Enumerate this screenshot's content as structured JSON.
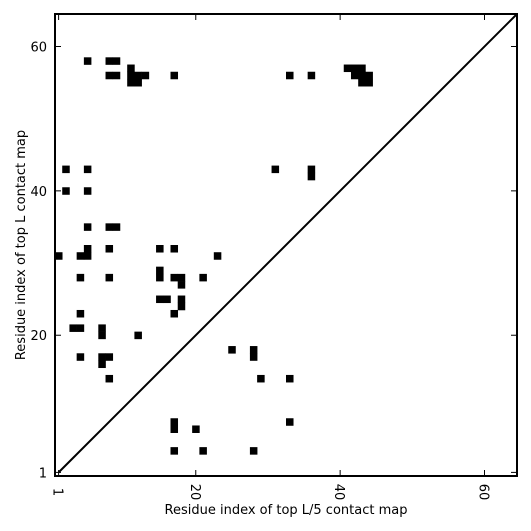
{
  "chart_data": {
    "type": "heatmap",
    "title": "",
    "xlabel": "Residue index of top L/5 contact map",
    "ylabel": "Residue index of top L contact map",
    "xlim": [
      0.5,
      64.5
    ],
    "ylim": [
      0.5,
      64.5
    ],
    "xticks": [
      1,
      20,
      40,
      60
    ],
    "yticks": [
      1,
      20,
      40,
      60
    ],
    "x_tick_labels": [
      "1",
      "20",
      "40",
      "60"
    ],
    "y_tick_labels": [
      "1",
      "20",
      "40",
      "60"
    ],
    "x_tick_rotation": "vertical",
    "diagonal_line": true,
    "cell_color": "#000000",
    "background_color": "#ffffff",
    "contacts_top_L": [
      [
        5,
        58
      ],
      [
        8,
        58
      ],
      [
        9,
        58
      ],
      [
        8,
        56
      ],
      [
        9,
        56
      ],
      [
        11,
        57
      ],
      [
        11,
        56
      ],
      [
        12,
        56
      ],
      [
        13,
        56
      ],
      [
        11,
        55
      ],
      [
        12,
        55
      ],
      [
        17,
        56
      ],
      [
        41,
        57
      ],
      [
        42,
        57
      ],
      [
        43,
        57
      ],
      [
        42,
        56
      ],
      [
        43,
        56
      ],
      [
        44,
        56
      ],
      [
        43,
        55
      ],
      [
        44,
        55
      ],
      [
        33,
        56
      ],
      [
        36,
        56
      ],
      [
        2,
        43
      ],
      [
        5,
        43
      ],
      [
        31,
        43
      ],
      [
        36,
        43
      ],
      [
        36,
        42
      ],
      [
        2,
        40
      ],
      [
        5,
        40
      ],
      [
        5,
        35
      ],
      [
        8,
        35
      ],
      [
        9,
        35
      ],
      [
        5,
        32
      ],
      [
        8,
        32
      ],
      [
        15,
        32
      ],
      [
        17,
        32
      ],
      [
        1,
        31
      ],
      [
        4,
        31
      ],
      [
        5,
        31
      ],
      [
        23,
        31
      ],
      [
        4,
        28
      ],
      [
        8,
        28
      ],
      [
        15,
        29
      ],
      [
        15,
        28
      ],
      [
        17,
        28
      ],
      [
        18,
        28
      ],
      [
        21,
        28
      ],
      [
        18,
        27
      ],
      [
        15,
        25
      ],
      [
        16,
        25
      ],
      [
        18,
        25
      ],
      [
        18,
        24
      ],
      [
        4,
        23
      ],
      [
        17,
        23
      ],
      [
        3,
        21
      ],
      [
        4,
        21
      ],
      [
        7,
        21
      ],
      [
        7,
        20
      ],
      [
        12,
        20
      ],
      [
        25,
        18
      ],
      [
        28,
        18
      ],
      [
        28,
        17
      ],
      [
        4,
        17
      ],
      [
        7,
        17
      ],
      [
        8,
        17
      ],
      [
        7,
        16
      ],
      [
        8,
        14
      ],
      [
        29,
        14
      ],
      [
        33,
        14
      ],
      [
        33,
        8
      ],
      [
        17,
        8
      ],
      [
        17,
        7
      ],
      [
        20,
        7
      ],
      [
        17,
        4
      ],
      [
        21,
        4
      ],
      [
        28,
        4
      ]
    ],
    "contacts_top_L5": []
  }
}
